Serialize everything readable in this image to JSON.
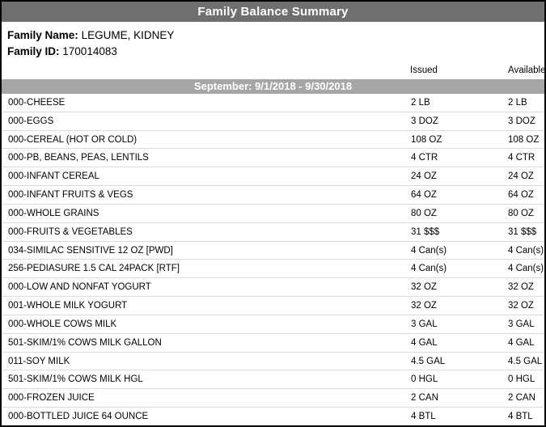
{
  "report": {
    "title": "Family Balance Summary"
  },
  "family": {
    "name_label": "Family Name:",
    "name": "LEGUME, KIDNEY",
    "id_label": "Family ID:",
    "id": "170014083"
  },
  "columns": {
    "issued": "Issued",
    "available": "Available"
  },
  "period": {
    "label": "September: 9/1/2018 - 9/30/2018"
  },
  "rows": [
    {
      "item": "000-CHEESE",
      "issued": "2 LB",
      "available": "2 LB"
    },
    {
      "item": "000-EGGS",
      "issued": "3 DOZ",
      "available": "3 DOZ"
    },
    {
      "item": "000-CEREAL (HOT OR COLD)",
      "issued": "108 OZ",
      "available": "108 OZ"
    },
    {
      "item": "000-PB, BEANS, PEAS, LENTILS",
      "issued": "4 CTR",
      "available": "4 CTR"
    },
    {
      "item": "000-INFANT CEREAL",
      "issued": "24 OZ",
      "available": "24 OZ"
    },
    {
      "item": "000-INFANT FRUITS & VEGS",
      "issued": "64 OZ",
      "available": "64 OZ"
    },
    {
      "item": "000-WHOLE GRAINS",
      "issued": "80 OZ",
      "available": "80 OZ"
    },
    {
      "item": "000-FRUITS & VEGETABLES",
      "issued": "31 $$$",
      "available": "31 $$$"
    },
    {
      "item": "034-SIMILAC SENSITIVE 12 OZ [PWD]",
      "issued": "4 Can(s)",
      "available": "4 Can(s)"
    },
    {
      "item": "256-PEDIASURE 1.5 CAL 24PACK [RTF]",
      "issued": "4 Can(s)",
      "available": "4 Can(s)"
    },
    {
      "item": "000-LOW AND NONFAT YOGURT",
      "issued": "32 OZ",
      "available": "32 OZ"
    },
    {
      "item": "001-WHOLE MILK YOGURT",
      "issued": "32 OZ",
      "available": "32 OZ"
    },
    {
      "item": "000-WHOLE COWS MILK",
      "issued": "3 GAL",
      "available": "3 GAL"
    },
    {
      "item": "501-SKIM/1% COWS MILK GALLON",
      "issued": "4 GAL",
      "available": "4 GAL"
    },
    {
      "item": "011-SOY MILK",
      "issued": "4.5 GAL",
      "available": "4.5 GAL"
    },
    {
      "item": "501-SKIM/1% COWS MILK HGL",
      "issued": "0 HGL",
      "available": "0 HGL"
    },
    {
      "item": "000-FROZEN JUICE",
      "issued": "2 CAN",
      "available": "2 CAN"
    },
    {
      "item": "000-BOTTLED JUICE 64 OUNCE",
      "issued": "4 BTL",
      "available": "4 BTL"
    }
  ],
  "colors": {
    "title_bar": "#6f6f6f",
    "period_bar": "#a6a6a6",
    "row_separator": "#dcdcdc",
    "border": "#000000",
    "text": "#000000",
    "header_text": "#ffffff"
  }
}
